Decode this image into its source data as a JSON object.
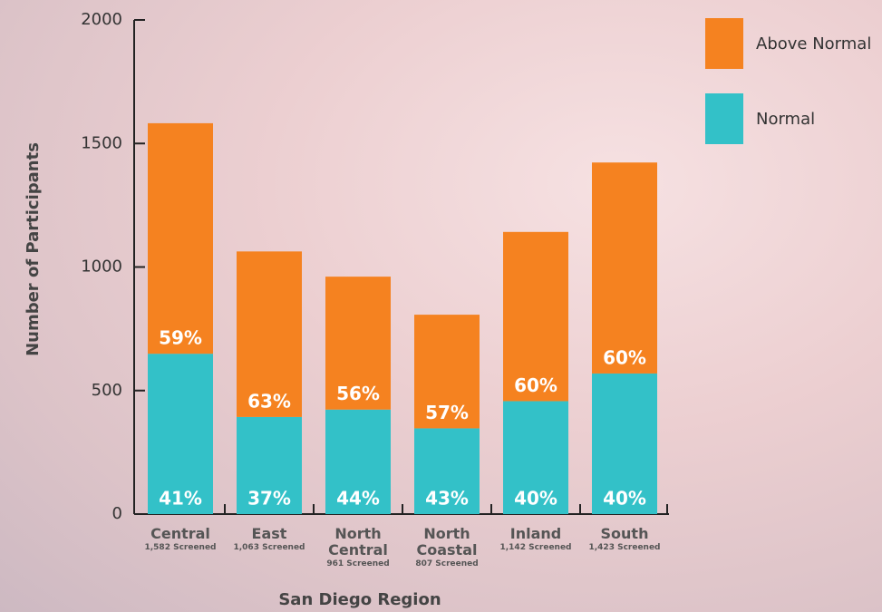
{
  "chart_data": {
    "type": "stacked_bar",
    "x_label": "San Diego Region",
    "y_label": "Number of Participants",
    "categories": [
      "Central",
      "East",
      "North Central",
      "North Coastal",
      "Inland",
      "South"
    ],
    "category_sublabels": [
      "1,582 Screened",
      "1,063 Screened",
      "961 Screened",
      "807 Screened",
      "1,142 Screened",
      "1,423 Screened"
    ],
    "series": [
      {
        "name": "Normal",
        "color": "#33c1c8",
        "values": [
          649,
          393,
          423,
          347,
          457,
          569
        ],
        "percent_labels": [
          "41%",
          "37%",
          "44%",
          "43%",
          "40%",
          "40%"
        ]
      },
      {
        "name": "Above Normal",
        "color": "#f58220",
        "values": [
          933,
          670,
          538,
          460,
          685,
          854
        ],
        "percent_labels": [
          "59%",
          "63%",
          "56%",
          "57%",
          "60%",
          "60%"
        ]
      }
    ],
    "ylim": [
      0,
      2000
    ],
    "yticks": [
      0,
      500,
      1000,
      1500,
      2000
    ]
  }
}
